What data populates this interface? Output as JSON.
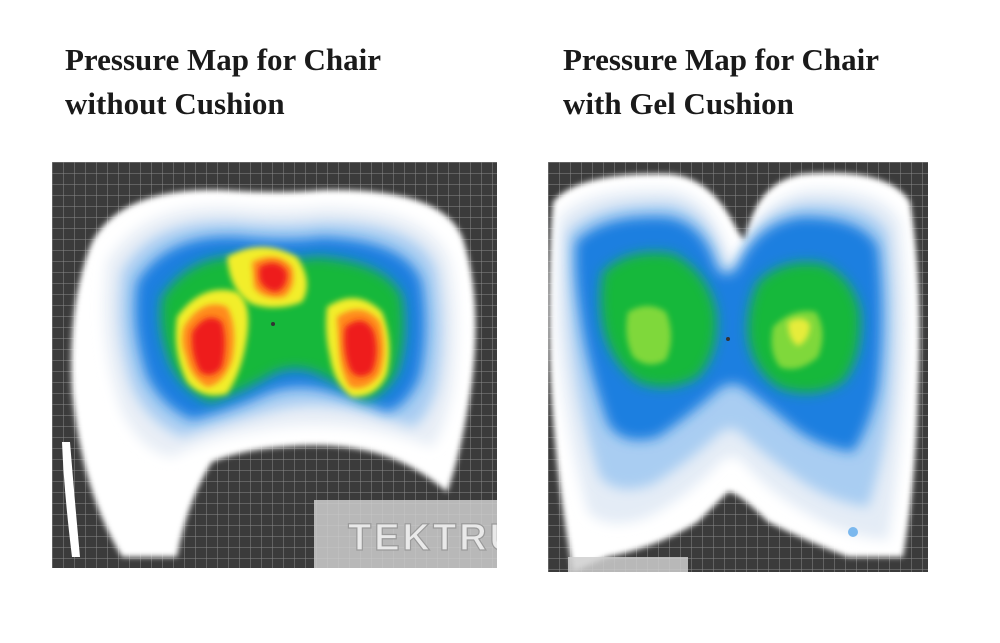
{
  "panels": [
    {
      "title_line1": "Pressure Map for Chair",
      "title_line2": "without Cushion",
      "image": "pressure-heatmap-without-cushion"
    },
    {
      "title_line1": "Pressure Map for Chair",
      "title_line2": "with Gel Cushion",
      "image": "pressure-heatmap-with-gel-cushion"
    }
  ],
  "watermark": "TEKTRUM",
  "colors": {
    "grid_background": "#3b3b3b",
    "grid_lines": "#8a8a8a",
    "low": "#ffffff",
    "light_blue": "#b9d8f5",
    "blue": "#1f7fe0",
    "green": "#19b83a",
    "yellow": "#f2ee2a",
    "orange": "#ff8a1a",
    "red": "#ee1b1b"
  }
}
